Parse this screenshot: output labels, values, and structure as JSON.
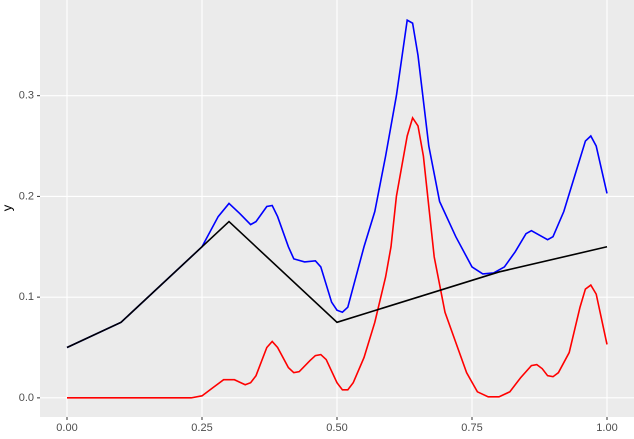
{
  "chart_data": {
    "type": "line",
    "y_label": "y",
    "xlim": [
      -0.05,
      1.05
    ],
    "ylim": [
      -0.019,
      0.395
    ],
    "xticks": [
      {
        "value": 0,
        "label": "0.00"
      },
      0.25,
      {
        "value": 0.5,
        "label": "0.50"
      },
      0.75,
      {
        "value": 1,
        "label": "1.00"
      }
    ],
    "yticks": [
      {
        "value": 0,
        "label": "0.0"
      },
      0.1,
      0.2,
      0.3
    ],
    "grid": true,
    "series": [
      {
        "color": "#0000ff",
        "x": [
          0,
          0.1,
          0.25,
          0.28,
          0.3,
          0.32,
          0.34,
          0.35,
          0.37,
          0.38,
          0.39,
          0.41,
          0.42,
          0.44,
          0.46,
          0.47,
          0.49,
          0.5,
          0.51,
          0.52,
          0.53,
          0.55,
          0.57,
          0.59,
          0.61,
          0.63,
          0.64,
          0.65,
          0.67,
          0.69,
          0.72,
          0.75,
          0.77,
          0.79,
          0.81,
          0.83,
          0.85,
          0.86,
          0.88,
          0.89,
          0.9,
          0.92,
          0.94,
          0.96,
          0.97,
          0.98,
          1.0
        ],
        "values": [
          0.05,
          0.075,
          0.15,
          0.18,
          0.193,
          0.183,
          0.172,
          0.175,
          0.19,
          0.191,
          0.18,
          0.15,
          0.138,
          0.135,
          0.136,
          0.13,
          0.095,
          0.087,
          0.085,
          0.09,
          0.11,
          0.15,
          0.185,
          0.24,
          0.3,
          0.375,
          0.372,
          0.34,
          0.25,
          0.195,
          0.16,
          0.13,
          0.123,
          0.124,
          0.13,
          0.145,
          0.163,
          0.166,
          0.16,
          0.157,
          0.16,
          0.185,
          0.22,
          0.255,
          0.26,
          0.25,
          0.203
        ]
      },
      {
        "color": "#ff0000",
        "x": [
          0,
          0.23,
          0.25,
          0.27,
          0.29,
          0.31,
          0.33,
          0.34,
          0.35,
          0.37,
          0.38,
          0.39,
          0.41,
          0.42,
          0.43,
          0.45,
          0.46,
          0.47,
          0.48,
          0.5,
          0.51,
          0.52,
          0.53,
          0.55,
          0.57,
          0.59,
          0.6,
          0.61,
          0.63,
          0.64,
          0.65,
          0.66,
          0.68,
          0.7,
          0.72,
          0.74,
          0.76,
          0.78,
          0.8,
          0.82,
          0.84,
          0.86,
          0.87,
          0.88,
          0.89,
          0.9,
          0.91,
          0.93,
          0.95,
          0.96,
          0.97,
          0.98,
          1.0
        ],
        "values": [
          0,
          0,
          0.002,
          0.01,
          0.018,
          0.018,
          0.013,
          0.015,
          0.022,
          0.05,
          0.056,
          0.05,
          0.03,
          0.025,
          0.026,
          0.037,
          0.042,
          0.043,
          0.038,
          0.015,
          0.008,
          0.008,
          0.015,
          0.04,
          0.075,
          0.12,
          0.15,
          0.2,
          0.26,
          0.278,
          0.27,
          0.24,
          0.14,
          0.085,
          0.055,
          0.025,
          0.006,
          0.001,
          0.001,
          0.006,
          0.02,
          0.032,
          0.033,
          0.029,
          0.022,
          0.021,
          0.025,
          0.045,
          0.09,
          0.108,
          0.112,
          0.103,
          0.053
        ]
      },
      {
        "color": "#000000",
        "x": [
          0,
          0.1,
          0.3,
          0.5,
          0.8,
          1.0
        ],
        "values": [
          0.05,
          0.075,
          0.175,
          0.075,
          0.125,
          0.15
        ]
      }
    ]
  }
}
